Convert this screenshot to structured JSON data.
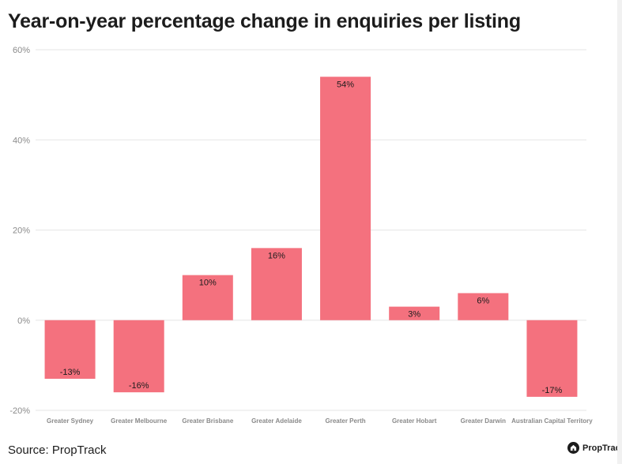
{
  "title": "Year-on-year percentage change in enquiries per listing",
  "source": "Source: PropTrack",
  "brand": {
    "name": "PropTrack",
    "logo_icon": "house-icon"
  },
  "colors": {
    "bar": "#f4717e",
    "grid": "#e6e6e6",
    "text": "#1c1c1c",
    "tick": "#8a8a8a"
  },
  "chart_data": {
    "type": "bar",
    "title": "Year-on-year percentage change in enquiries per listing",
    "xlabel": "",
    "ylabel": "",
    "categories": [
      "Greater Sydney",
      "Greater Melbourne",
      "Greater Brisbane",
      "Greater Adelaide",
      "Greater Perth",
      "Greater Hobart",
      "Greater Darwin",
      "Australian Capital Territory"
    ],
    "values": [
      -13,
      -16,
      10,
      16,
      54,
      3,
      6,
      -17
    ],
    "data_labels": [
      "-13%",
      "-16%",
      "10%",
      "16%",
      "54%",
      "3%",
      "6%",
      "-17%"
    ],
    "ylim": [
      -20,
      60
    ],
    "yticks": [
      -20,
      0,
      20,
      40,
      60
    ],
    "ytick_labels": [
      "-20%",
      "0%",
      "20%",
      "40%",
      "60%"
    ],
    "grid": true,
    "legend": "none"
  }
}
